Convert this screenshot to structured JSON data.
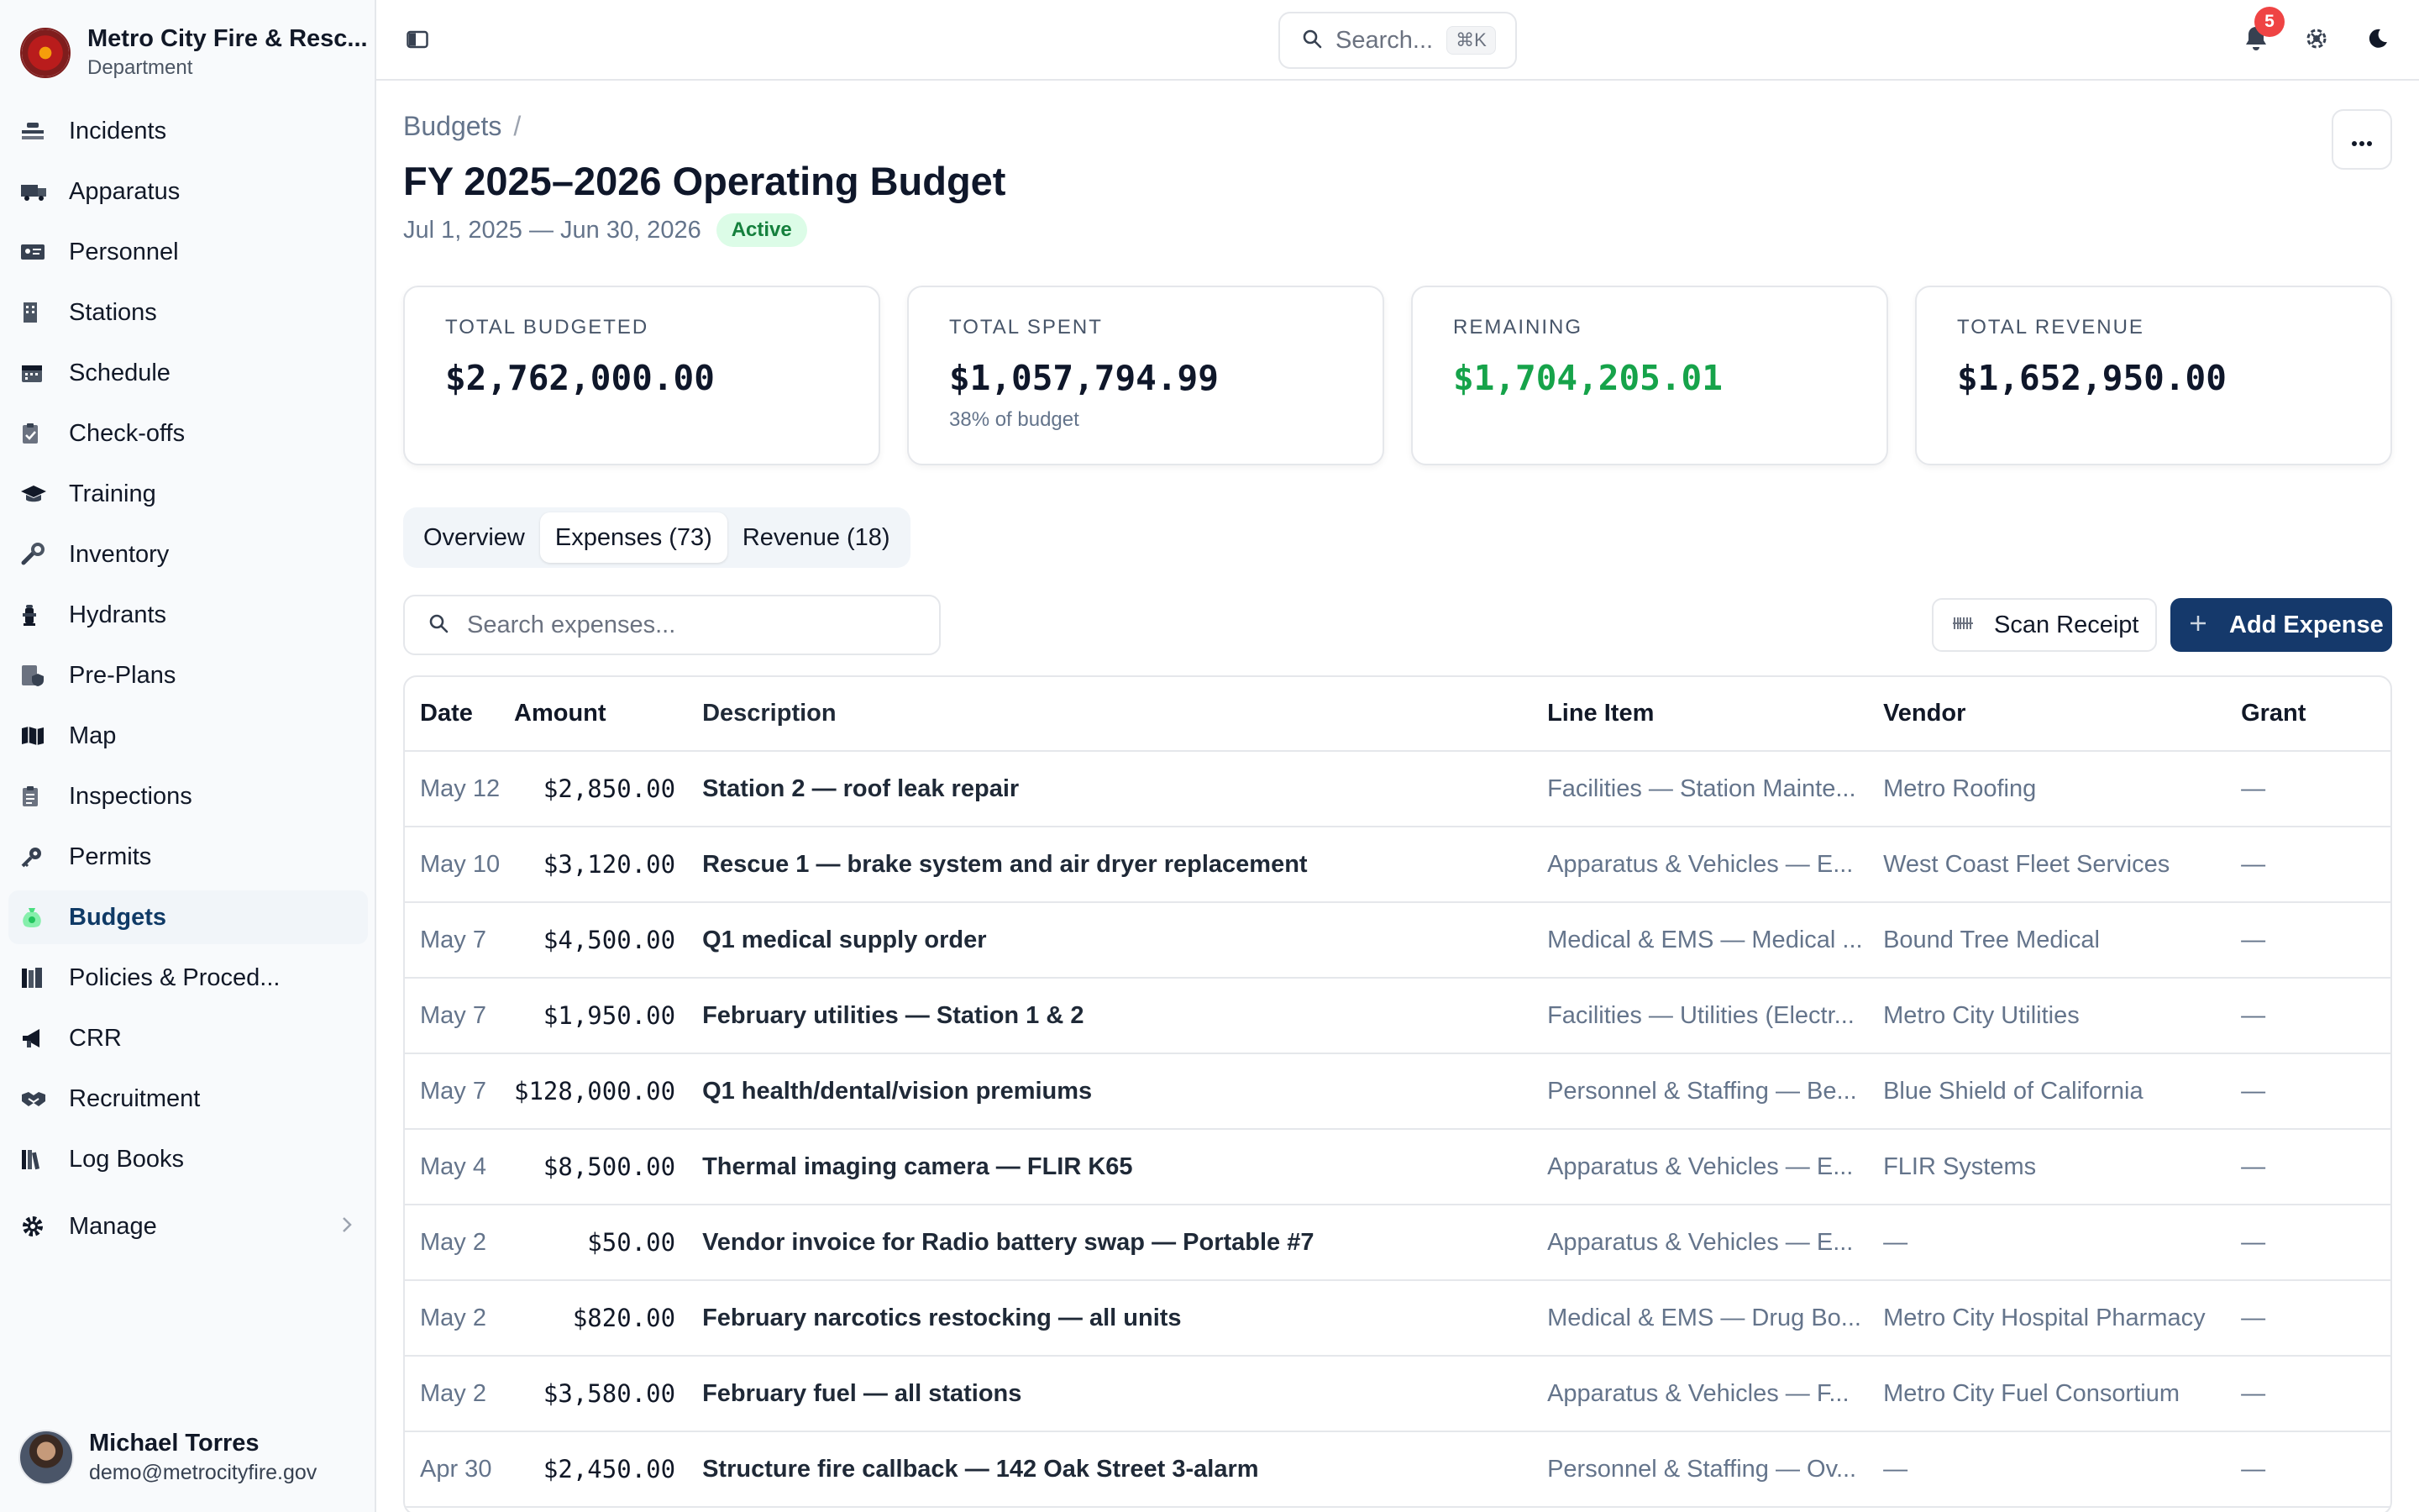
{
  "org": {
    "name": "Metro City Fire & Resc...",
    "subtitle": "Department"
  },
  "nav": {
    "items": [
      {
        "label": "Incidents",
        "icon": "incidents-icon"
      },
      {
        "label": "Apparatus",
        "icon": "fire-truck-icon"
      },
      {
        "label": "Personnel",
        "icon": "id-card-icon"
      },
      {
        "label": "Stations",
        "icon": "building-icon"
      },
      {
        "label": "Schedule",
        "icon": "calendar-icon"
      },
      {
        "label": "Check-offs",
        "icon": "clipboard-check-icon"
      },
      {
        "label": "Training",
        "icon": "graduation-cap-icon"
      },
      {
        "label": "Inventory",
        "icon": "wrench-icon"
      },
      {
        "label": "Hydrants",
        "icon": "hydrant-icon"
      },
      {
        "label": "Pre-Plans",
        "icon": "document-shield-icon"
      },
      {
        "label": "Map",
        "icon": "map-icon"
      },
      {
        "label": "Inspections",
        "icon": "clipboard-icon"
      },
      {
        "label": "Permits",
        "icon": "key-icon"
      },
      {
        "label": "Budgets",
        "icon": "money-bag-icon",
        "active": true
      },
      {
        "label": "Policies & Proced...",
        "icon": "books-icon"
      },
      {
        "label": "CRR",
        "icon": "megaphone-icon"
      },
      {
        "label": "Recruitment",
        "icon": "handshake-icon"
      },
      {
        "label": "Log Books",
        "icon": "log-books-icon"
      }
    ],
    "manage": {
      "label": "Manage",
      "icon": "gear-icon"
    }
  },
  "user": {
    "name": "Michael Torres",
    "email": "demo@metrocityfire.gov"
  },
  "topbar": {
    "search_placeholder": "Search...",
    "shortcut": "⌘K",
    "notification_count": "5"
  },
  "breadcrumb": {
    "parent": "Budgets",
    "separator": "/"
  },
  "budget": {
    "title": "FY 2025–2026 Operating Budget",
    "period": "Jul 1, 2025 — Jun 30, 2026",
    "status": "Active"
  },
  "summary": {
    "total_budgeted": {
      "label": "TOTAL BUDGETED",
      "value": "$2,762,000.00"
    },
    "total_spent": {
      "label": "TOTAL SPENT",
      "value": "$1,057,794.99",
      "note": "38% of budget"
    },
    "remaining": {
      "label": "REMAINING",
      "value": "$1,704,205.01",
      "color": "#16a34a"
    },
    "total_revenue": {
      "label": "TOTAL REVENUE",
      "value": "$1,652,950.00"
    }
  },
  "tabs": [
    {
      "label": "Overview"
    },
    {
      "label": "Expenses (73)",
      "selected": true
    },
    {
      "label": "Revenue (18)"
    }
  ],
  "expenses": {
    "search_placeholder": "Search expenses...",
    "scan_label": "Scan Receipt",
    "add_label": "Add Expense",
    "columns": [
      "Date",
      "Amount",
      "Description",
      "Line Item",
      "Vendor",
      "Grant"
    ],
    "rows": [
      {
        "date": "May 12",
        "amount": "$2,850.00",
        "description": "Station 2 — roof leak repair",
        "line_item": "Facilities — Station Mainte...",
        "vendor": "Metro Roofing",
        "grant": "—"
      },
      {
        "date": "May 10",
        "amount": "$3,120.00",
        "description": "Rescue 1 — brake system and air dryer replacement",
        "line_item": "Apparatus & Vehicles — E...",
        "vendor": "West Coast Fleet Services",
        "grant": "—"
      },
      {
        "date": "May 7",
        "amount": "$4,500.00",
        "description": "Q1 medical supply order",
        "line_item": "Medical & EMS — Medical ...",
        "vendor": "Bound Tree Medical",
        "grant": "—"
      },
      {
        "date": "May 7",
        "amount": "$1,950.00",
        "description": "February utilities — Station 1 & 2",
        "line_item": "Facilities — Utilities (Electr...",
        "vendor": "Metro City Utilities",
        "grant": "—"
      },
      {
        "date": "May 7",
        "amount": "$128,000.00",
        "description": "Q1 health/dental/vision premiums",
        "line_item": "Personnel & Staffing — Be...",
        "vendor": "Blue Shield of California",
        "grant": "—"
      },
      {
        "date": "May 4",
        "amount": "$8,500.00",
        "description": "Thermal imaging camera — FLIR K65",
        "line_item": "Apparatus & Vehicles — E...",
        "vendor": "FLIR Systems",
        "grant": "—"
      },
      {
        "date": "May 2",
        "amount": "$50.00",
        "description": "Vendor invoice for Radio battery swap — Portable #7",
        "line_item": "Apparatus & Vehicles — E...",
        "vendor": "—",
        "grant": "—"
      },
      {
        "date": "May 2",
        "amount": "$820.00",
        "description": "February narcotics restocking — all units",
        "line_item": "Medical & EMS — Drug Bo...",
        "vendor": "Metro City Hospital Pharmacy",
        "grant": "—"
      },
      {
        "date": "May 2",
        "amount": "$3,580.00",
        "description": "February fuel — all stations",
        "line_item": "Apparatus & Vehicles — F...",
        "vendor": "Metro City Fuel Consortium",
        "grant": "—"
      },
      {
        "date": "Apr 30",
        "amount": "$2,450.00",
        "description": "Structure fire callback — 142 Oak Street 3-alarm",
        "line_item": "Personnel & Staffing — Ov...",
        "vendor": "—",
        "grant": "—"
      }
    ]
  }
}
